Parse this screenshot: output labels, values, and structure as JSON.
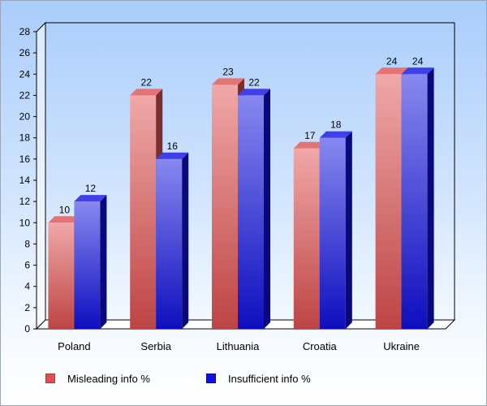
{
  "chart_data": {
    "type": "bar",
    "categories": [
      "Poland",
      "Serbia",
      "Lithuania",
      "Croatia",
      "Ukraine"
    ],
    "series": [
      {
        "name": "Misleading info %",
        "values": [
          10,
          22,
          23,
          17,
          24
        ],
        "color": "#e05050"
      },
      {
        "name": "Insufficient info %",
        "values": [
          12,
          16,
          22,
          18,
          24
        ],
        "color": "#1010e0"
      }
    ],
    "yticks": [
      0,
      2,
      4,
      6,
      8,
      10,
      12,
      14,
      16,
      18,
      20,
      22,
      24,
      26,
      28
    ],
    "ylim": [
      0,
      28
    ],
    "title": "",
    "xlabel": "",
    "ylabel": "",
    "grid": false,
    "legend_position": "bottom",
    "style": "3d"
  }
}
